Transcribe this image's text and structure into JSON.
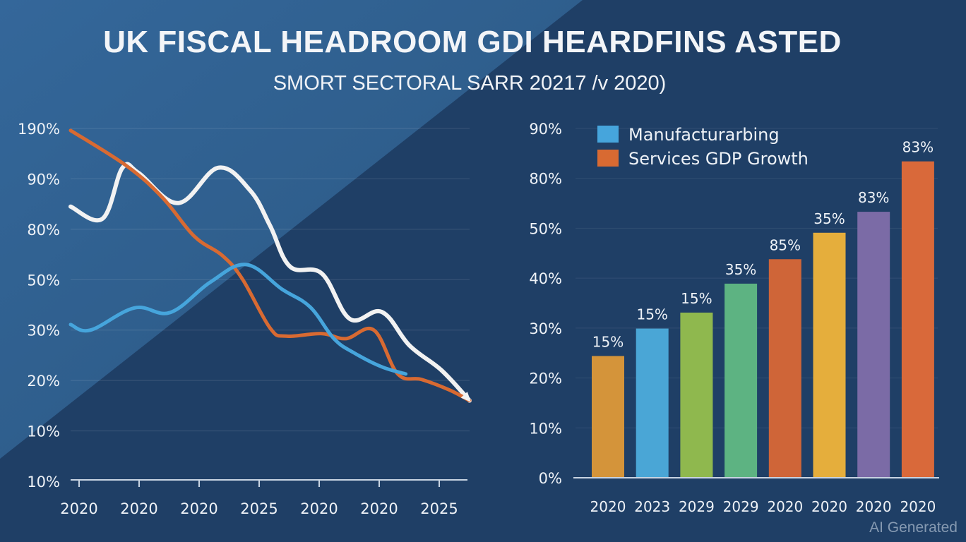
{
  "title": "UK FISCAL HEADROOM GDI HEARDFINS ASTED",
  "subtitle": "SMORT SECTORAL SARR 20217 /v 2020)",
  "watermark": "AI Generated",
  "colors": {
    "background_dark": "#1f3f66",
    "background_light": "#2e5d8a",
    "white_line": "#f2f2f2",
    "orange_line": "#d86a32",
    "blue_line": "#46a5dc",
    "text": "#eef2f7",
    "grid": "#3f6690"
  },
  "chart_data": [
    {
      "type": "line",
      "title": "",
      "xlabel": "",
      "ylabel": "",
      "y_tick_labels": [
        "10%",
        "10%",
        "20%",
        "30%",
        "50%",
        "80%",
        "90%",
        "190%"
      ],
      "x_tick_labels": [
        "2020",
        "2020",
        "2020",
        "2025",
        "2020",
        "2020",
        "2025"
      ],
      "y_scale_note": "tick labels are evenly spaced; values below are positions on the tick ladder (0 = bottom '10%' tick, 7 = top '190%' tick)",
      "ylim": [
        0,
        7
      ],
      "xlim": [
        0,
        1
      ],
      "grid": true,
      "legend": "none",
      "end_arrow": true,
      "series": [
        {
          "name": "white",
          "color": "#f2f2f2",
          "x": [
            0.0,
            0.08,
            0.13,
            0.17,
            0.27,
            0.37,
            0.45,
            0.5,
            0.55,
            0.63,
            0.7,
            0.78,
            0.85,
            0.93,
            1.0
          ],
          "y": [
            5.45,
            5.21,
            6.22,
            6.12,
            5.52,
            6.22,
            5.77,
            5.07,
            4.26,
            4.12,
            3.22,
            3.36,
            2.69,
            2.2,
            1.6
          ]
        },
        {
          "name": "orange",
          "color": "#d86a32",
          "x": [
            0.0,
            0.14,
            0.23,
            0.31,
            0.38,
            0.43,
            0.5,
            0.54,
            0.63,
            0.69,
            0.76,
            0.82,
            0.88,
            0.95,
            1.0
          ],
          "y": [
            6.96,
            6.26,
            5.63,
            4.86,
            4.48,
            4.02,
            3.04,
            2.88,
            2.93,
            2.83,
            3.0,
            2.13,
            2.02,
            1.81,
            1.6
          ]
        },
        {
          "name": "blue",
          "color": "#46a5dc",
          "x": [
            0.0,
            0.05,
            0.16,
            0.25,
            0.35,
            0.44,
            0.53,
            0.6,
            0.66,
            0.71,
            0.78,
            0.84
          ],
          "y": [
            3.11,
            3.0,
            3.44,
            3.35,
            3.95,
            4.3,
            3.81,
            3.46,
            2.83,
            2.55,
            2.27,
            2.13
          ]
        }
      ]
    },
    {
      "type": "bar",
      "title": "",
      "xlabel": "",
      "ylabel": "",
      "y_tick_labels": [
        "0%",
        "10%",
        "20%",
        "30%",
        "40%",
        "50%",
        "80%",
        "90%"
      ],
      "y_scale_note": "tick labels are evenly spaced; values below are positions on the tick ladder (0 = '0%' tick, 7 = '90%' tick)",
      "ylim": [
        0,
        7
      ],
      "grid": true,
      "legend": "top-left",
      "legend_entries": [
        {
          "label": "Manufacturarbing",
          "color": "#46a5dc"
        },
        {
          "label": "Services GDP Growth",
          "color": "#d86a32"
        }
      ],
      "categories": [
        "2020",
        "2023",
        "2029",
        "2029",
        "2020",
        "2020",
        "2020",
        "2020"
      ],
      "values": [
        2.44,
        2.99,
        3.31,
        3.89,
        4.38,
        4.91,
        5.33,
        6.34
      ],
      "data_labels": [
        "15%",
        "15%",
        "15%",
        "35%",
        "85%",
        "35%",
        "83%",
        "83%"
      ],
      "bar_colors": [
        "#d4943a",
        "#4aa6d6",
        "#8fb84e",
        "#5db382",
        "#cf6538",
        "#e5ae3c",
        "#7b6ba6",
        "#d9693a"
      ]
    }
  ]
}
